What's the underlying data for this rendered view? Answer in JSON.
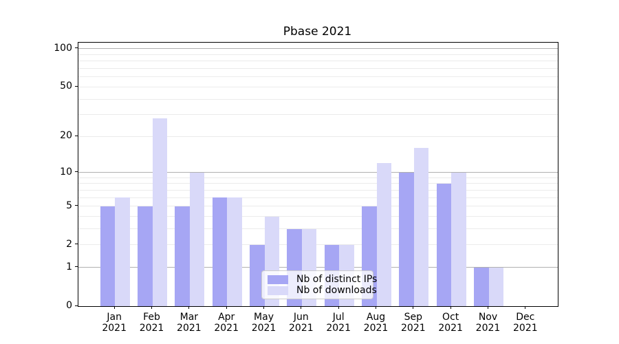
{
  "chart_data": {
    "type": "bar",
    "title": "Pbase 2021",
    "categories": [
      "Jan 2021",
      "Feb 2021",
      "Mar 2021",
      "Apr 2021",
      "May 2021",
      "Jun 2021",
      "Jul 2021",
      "Aug 2021",
      "Sep 2021",
      "Oct 2021",
      "Nov 2021",
      "Dec 2021"
    ],
    "series": [
      {
        "name": "Nb of distinct IPs",
        "color": "#a6a6f4",
        "values": [
          5,
          5,
          5,
          6,
          2,
          3,
          2,
          5,
          10,
          8,
          1,
          0
        ]
      },
      {
        "name": "Nb of downloads",
        "color": "#d9d9f9",
        "values": [
          6,
          28,
          10,
          6,
          4,
          3,
          2,
          12,
          16,
          10,
          1,
          0
        ]
      }
    ],
    "yscale": "log10(value+1)",
    "ylim": [
      0,
      107
    ],
    "y_tick_labels": [
      "0",
      "1",
      "2",
      "5",
      "10",
      "20",
      "50",
      "100"
    ],
    "y_tick_values": [
      0,
      1,
      2,
      5,
      10,
      20,
      50,
      100
    ],
    "y_major_gridlines": [
      1,
      10,
      100
    ],
    "y_minor_gridlines": [
      2,
      3,
      4,
      5,
      6,
      7,
      8,
      9,
      20,
      30,
      40,
      50,
      60,
      70,
      80,
      90
    ],
    "grid": "on",
    "legend_position": "lower center",
    "frame_color": "#000000",
    "major_grid_color": "#b0b0b0",
    "minor_grid_color": "#ebebeb"
  }
}
